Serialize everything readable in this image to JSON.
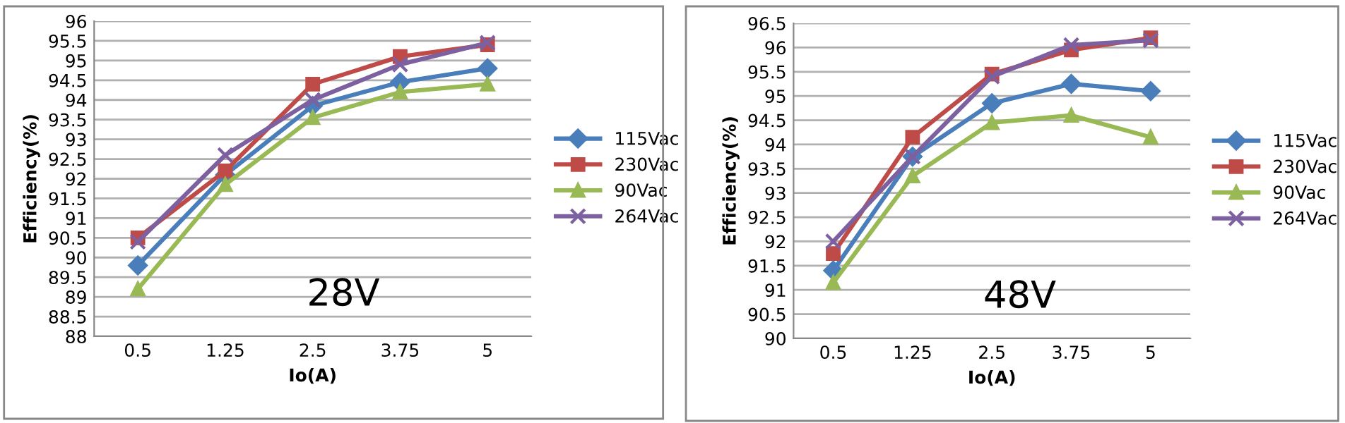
{
  "chart_data": [
    {
      "type": "line",
      "xlabel": "Io(A)",
      "ylabel": "Efficiency(%)",
      "annotations": [
        "28V"
      ],
      "categories": [
        "0.5",
        "1.25",
        "2.5",
        "3.75",
        "5"
      ],
      "ylim": [
        88,
        96
      ],
      "yticks": [
        88,
        88.5,
        89,
        89.5,
        90,
        90.5,
        91,
        91.5,
        92,
        92.5,
        93,
        93.5,
        94,
        94.5,
        95,
        95.5,
        96
      ],
      "grid": "y",
      "legend": "right",
      "series": [
        {
          "name": "115Vac",
          "color": "#4a7ebb",
          "marker": "diamond",
          "values": [
            89.8,
            92.1,
            93.85,
            94.45,
            94.8
          ]
        },
        {
          "name": "230Vac",
          "color": "#be4b48",
          "marker": "square",
          "values": [
            90.5,
            92.2,
            94.4,
            95.1,
            95.4
          ]
        },
        {
          "name": "90Vac",
          "color": "#98b954",
          "marker": "triangle",
          "values": [
            89.2,
            91.85,
            93.55,
            94.2,
            94.4
          ]
        },
        {
          "name": "264Vac",
          "color": "#7d60a0",
          "marker": "cross",
          "values": [
            90.4,
            92.6,
            94.0,
            94.9,
            95.45
          ]
        }
      ]
    },
    {
      "type": "line",
      "xlabel": "Io(A)",
      "ylabel": "Efficiency(%)",
      "annotations": [
        "48V"
      ],
      "categories": [
        "0.5",
        "1.25",
        "2.5",
        "3.75",
        "5"
      ],
      "ylim": [
        90,
        96.5
      ],
      "yticks": [
        90,
        90.5,
        91,
        91.5,
        92,
        92.5,
        93,
        93.5,
        94,
        94.5,
        95,
        95.5,
        96,
        96.5
      ],
      "grid": "y",
      "legend": "right",
      "series": [
        {
          "name": "115Vac",
          "color": "#4a7ebb",
          "marker": "diamond",
          "values": [
            91.4,
            93.75,
            94.85,
            95.25,
            95.1
          ]
        },
        {
          "name": "230Vac",
          "color": "#be4b48",
          "marker": "square",
          "values": [
            91.75,
            94.15,
            95.45,
            95.95,
            96.2
          ]
        },
        {
          "name": "90Vac",
          "color": "#98b954",
          "marker": "triangle",
          "values": [
            91.15,
            93.35,
            94.45,
            94.6,
            94.15
          ]
        },
        {
          "name": "264Vac",
          "color": "#7d60a0",
          "marker": "cross",
          "values": [
            92.0,
            93.75,
            95.4,
            96.05,
            96.15
          ]
        }
      ]
    }
  ]
}
